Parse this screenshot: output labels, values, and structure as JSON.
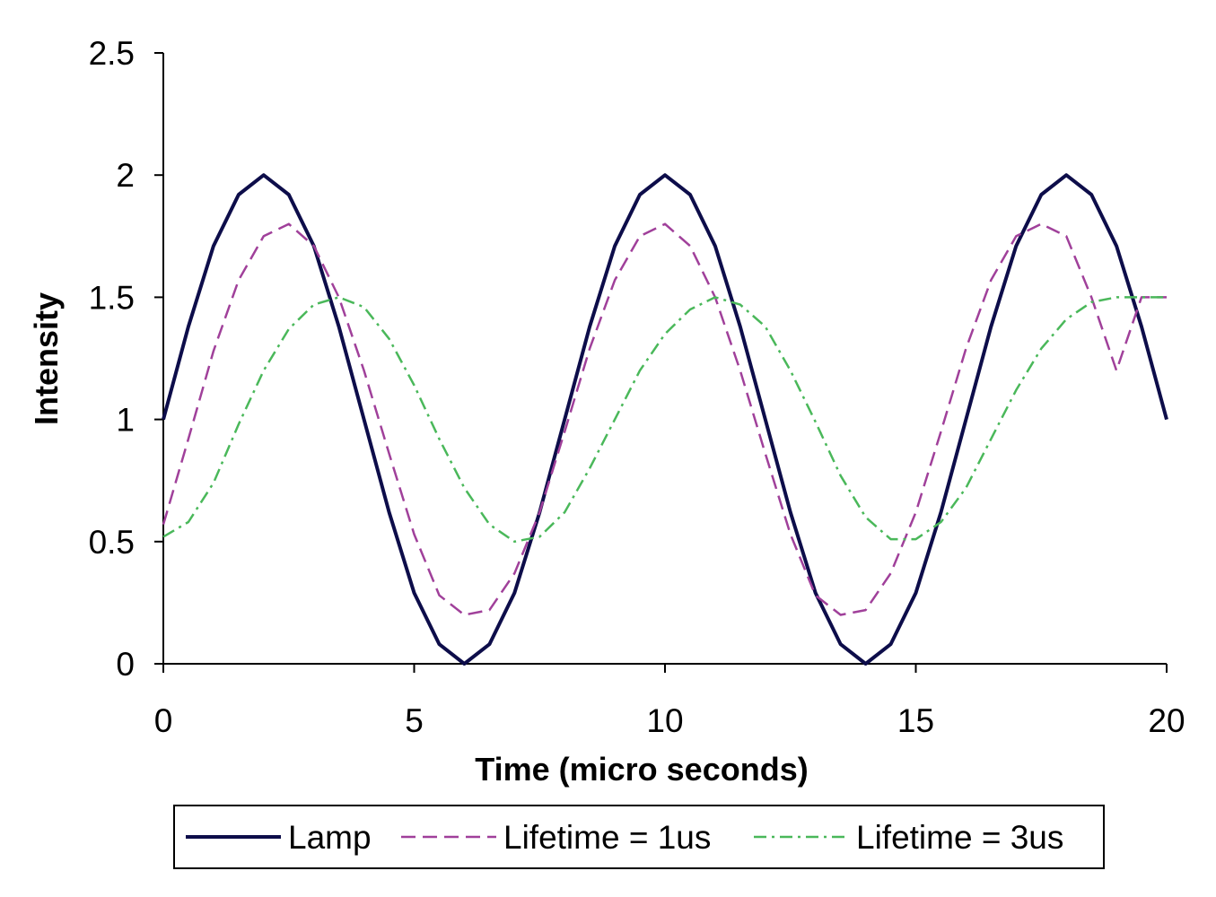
{
  "chart_data": {
    "type": "line",
    "title": "",
    "xlabel": "Time (micro seconds)",
    "ylabel": "Intensity",
    "xlim": [
      0,
      20
    ],
    "ylim": [
      0,
      2.5
    ],
    "x_ticks": [
      "0",
      "5",
      "10",
      "15",
      "20"
    ],
    "y_ticks": [
      "0",
      "0.5",
      "1",
      "1.5",
      "2",
      "2.5"
    ],
    "grid": false,
    "legend_position": "bottom",
    "series": [
      {
        "name": "Lamp",
        "color": "#0d0d4a",
        "dash": "solid",
        "x": [
          0,
          0.5,
          1,
          1.5,
          2,
          2.5,
          3,
          3.5,
          4,
          4.5,
          5,
          5.5,
          6,
          6.5,
          7,
          7.5,
          8,
          8.5,
          9,
          9.5,
          10,
          10.5,
          11,
          11.5,
          12,
          12.5,
          13,
          13.5,
          14,
          14.5,
          15,
          15.5,
          16,
          16.5,
          17,
          17.5,
          18,
          18.5,
          19,
          19.5,
          20
        ],
        "y": [
          1.0,
          1.38,
          1.71,
          1.92,
          2.0,
          1.92,
          1.71,
          1.38,
          1.0,
          0.62,
          0.29,
          0.08,
          0.0,
          0.08,
          0.29,
          0.62,
          1.0,
          1.38,
          1.71,
          1.92,
          2.0,
          1.92,
          1.71,
          1.38,
          1.0,
          0.62,
          0.29,
          0.08,
          0.0,
          0.08,
          0.29,
          0.62,
          1.0,
          1.38,
          1.71,
          1.92,
          2.0,
          1.92,
          1.71,
          1.38,
          1.0
        ]
      },
      {
        "name": "Lifetime = 1us",
        "color": "#a0409a",
        "dash": "dashed",
        "x": [
          0,
          0.5,
          1,
          1.5,
          2,
          2.5,
          3,
          3.5,
          4,
          4.5,
          5,
          5.5,
          6,
          6.5,
          7,
          7.5,
          8,
          8.5,
          9,
          9.5,
          10,
          10.5,
          11,
          11.5,
          12,
          12.5,
          13,
          13.5,
          14,
          14.5,
          15,
          15.5,
          16,
          16.5,
          17,
          17.5,
          18,
          18.5,
          19,
          19.5,
          20
        ],
        "y": [
          0.57,
          0.92,
          1.28,
          1.57,
          1.75,
          1.8,
          1.71,
          1.5,
          1.2,
          0.86,
          0.53,
          0.28,
          0.2,
          0.22,
          0.37,
          0.62,
          0.95,
          1.29,
          1.57,
          1.75,
          1.8,
          1.71,
          1.5,
          1.2,
          0.86,
          0.53,
          0.28,
          0.2,
          0.22,
          0.37,
          0.62,
          0.95,
          1.29,
          1.57,
          1.75,
          1.8,
          1.75,
          1.5,
          1.2,
          1.5,
          1.5
        ]
      },
      {
        "name": "Lifetime = 3us",
        "color": "#4ab85a",
        "dash": "dashdot",
        "x": [
          0,
          0.5,
          1,
          1.5,
          2,
          2.5,
          3,
          3.5,
          4,
          4.5,
          5,
          5.5,
          6,
          6.5,
          7,
          7.5,
          8,
          8.5,
          9,
          9.5,
          10,
          10.5,
          11,
          11.5,
          12,
          12.5,
          13,
          13.5,
          14,
          14.5,
          15,
          15.5,
          16,
          16.5,
          17,
          17.5,
          18,
          18.5,
          19,
          19.5,
          20
        ],
        "y": [
          0.52,
          0.58,
          0.74,
          0.98,
          1.2,
          1.37,
          1.47,
          1.5,
          1.46,
          1.33,
          1.14,
          0.92,
          0.72,
          0.57,
          0.5,
          0.52,
          0.62,
          0.8,
          1.0,
          1.2,
          1.35,
          1.45,
          1.5,
          1.47,
          1.38,
          1.2,
          0.99,
          0.77,
          0.6,
          0.51,
          0.51,
          0.58,
          0.72,
          0.92,
          1.12,
          1.29,
          1.41,
          1.48,
          1.5,
          1.5,
          1.5
        ]
      }
    ]
  }
}
